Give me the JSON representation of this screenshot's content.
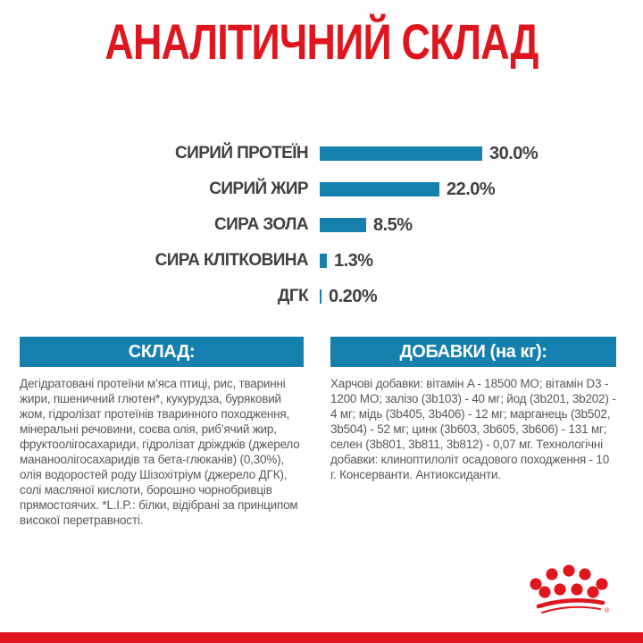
{
  "title": "АНАЛІТИЧНИЙ СКЛАД",
  "chart_data": {
    "type": "bar",
    "orientation": "horizontal",
    "categories": [
      "СИРИЙ ПРОТЕЇН",
      "СИРИЙ ЖИР",
      "СИРА ЗОЛА",
      "СИРА КЛІТКОВИНА",
      "ДГК"
    ],
    "values": [
      30.0,
      22.0,
      8.5,
      1.3,
      0.2
    ],
    "value_labels": [
      "30.0%",
      "22.0%",
      "8.5%",
      "1.3%",
      "0.20%"
    ],
    "unit": "%",
    "bar_color": "#157fad",
    "xlim": [
      0,
      33
    ],
    "grid": false,
    "legend": false,
    "title": "АНАЛІТИЧНИЙ СКЛАД"
  },
  "sections": {
    "composition": {
      "header": "СКЛАД:",
      "body": "Дегідратовані протеїни м’яса птиці, рис, тваринні жири, пшеничний глютен*, кукурудза, буряковий жом, гідролізат протеїнів тваринного походження, мінеральні речовини, соєва олія, риб’ячий жир, фруктоолігосахариди, гідролізат дріжджів (джерело мананоолігосахаридів та бета-глюканів) (0,30%), олія водоростей роду Шізохітріум (джерело ДГК), солі масляної кислоти, борошно чорнобривців прямостоячих. *L.I.P.: білки, відібрані за принципом високої перетравності."
    },
    "additives": {
      "header": "ДОБАВКИ (на кг):",
      "body": "Харчові добавки: вітамін A - 18500 МО; вітамін D3 - 1200 МО; залізо (3b103) - 40 мг; йод (3b201, 3b202) - 4 мг; мідь (3b405, 3b406) - 12 мг; марганець (3b502, 3b504) - 52 мг; цинк (3b603, 3b605, 3b606) - 131 мг; селен (3b801, 3b811, 3b812) - 0,07 мг. Технологічні добавки: клиноптилоліт осадового походження - 10 г. Консерванти. Антиоксиданти."
    }
  },
  "footer": {
    "logo_icon": "royal-canin-crown-icon",
    "registered_mark": "®"
  },
  "colors": {
    "accent_red": "#e0161f",
    "teal": "#157fad",
    "label_gray": "#414042",
    "body_gray": "#58585b",
    "background": "#ffffff"
  }
}
